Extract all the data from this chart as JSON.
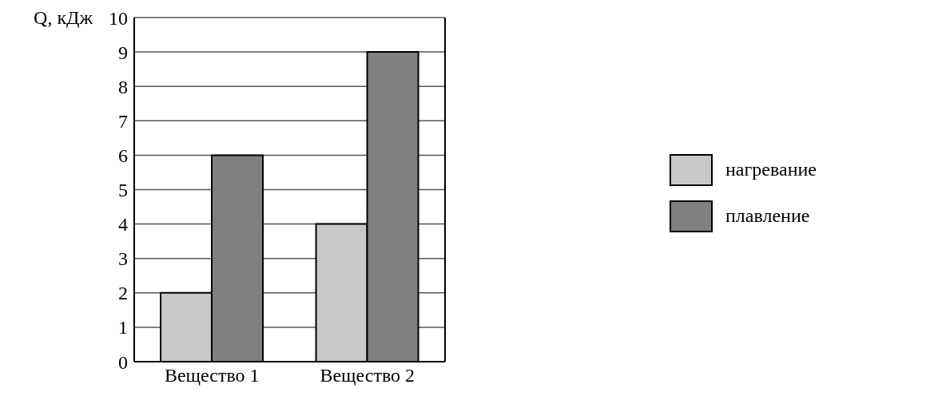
{
  "chart_data": {
    "type": "bar",
    "ylabel": "Q, кДж",
    "categories": [
      "Вещество 1",
      "Вещество 2"
    ],
    "series": [
      {
        "name": "нагревание",
        "color": "#c8c8c8",
        "values": [
          2,
          4
        ]
      },
      {
        "name": "плавление",
        "color": "#808080",
        "values": [
          6,
          9
        ]
      }
    ],
    "ylim": [
      0,
      10
    ],
    "yticks": [
      0,
      1,
      2,
      3,
      4,
      5,
      6,
      7,
      8,
      9,
      10
    ],
    "grid": "y",
    "legend": "right"
  }
}
